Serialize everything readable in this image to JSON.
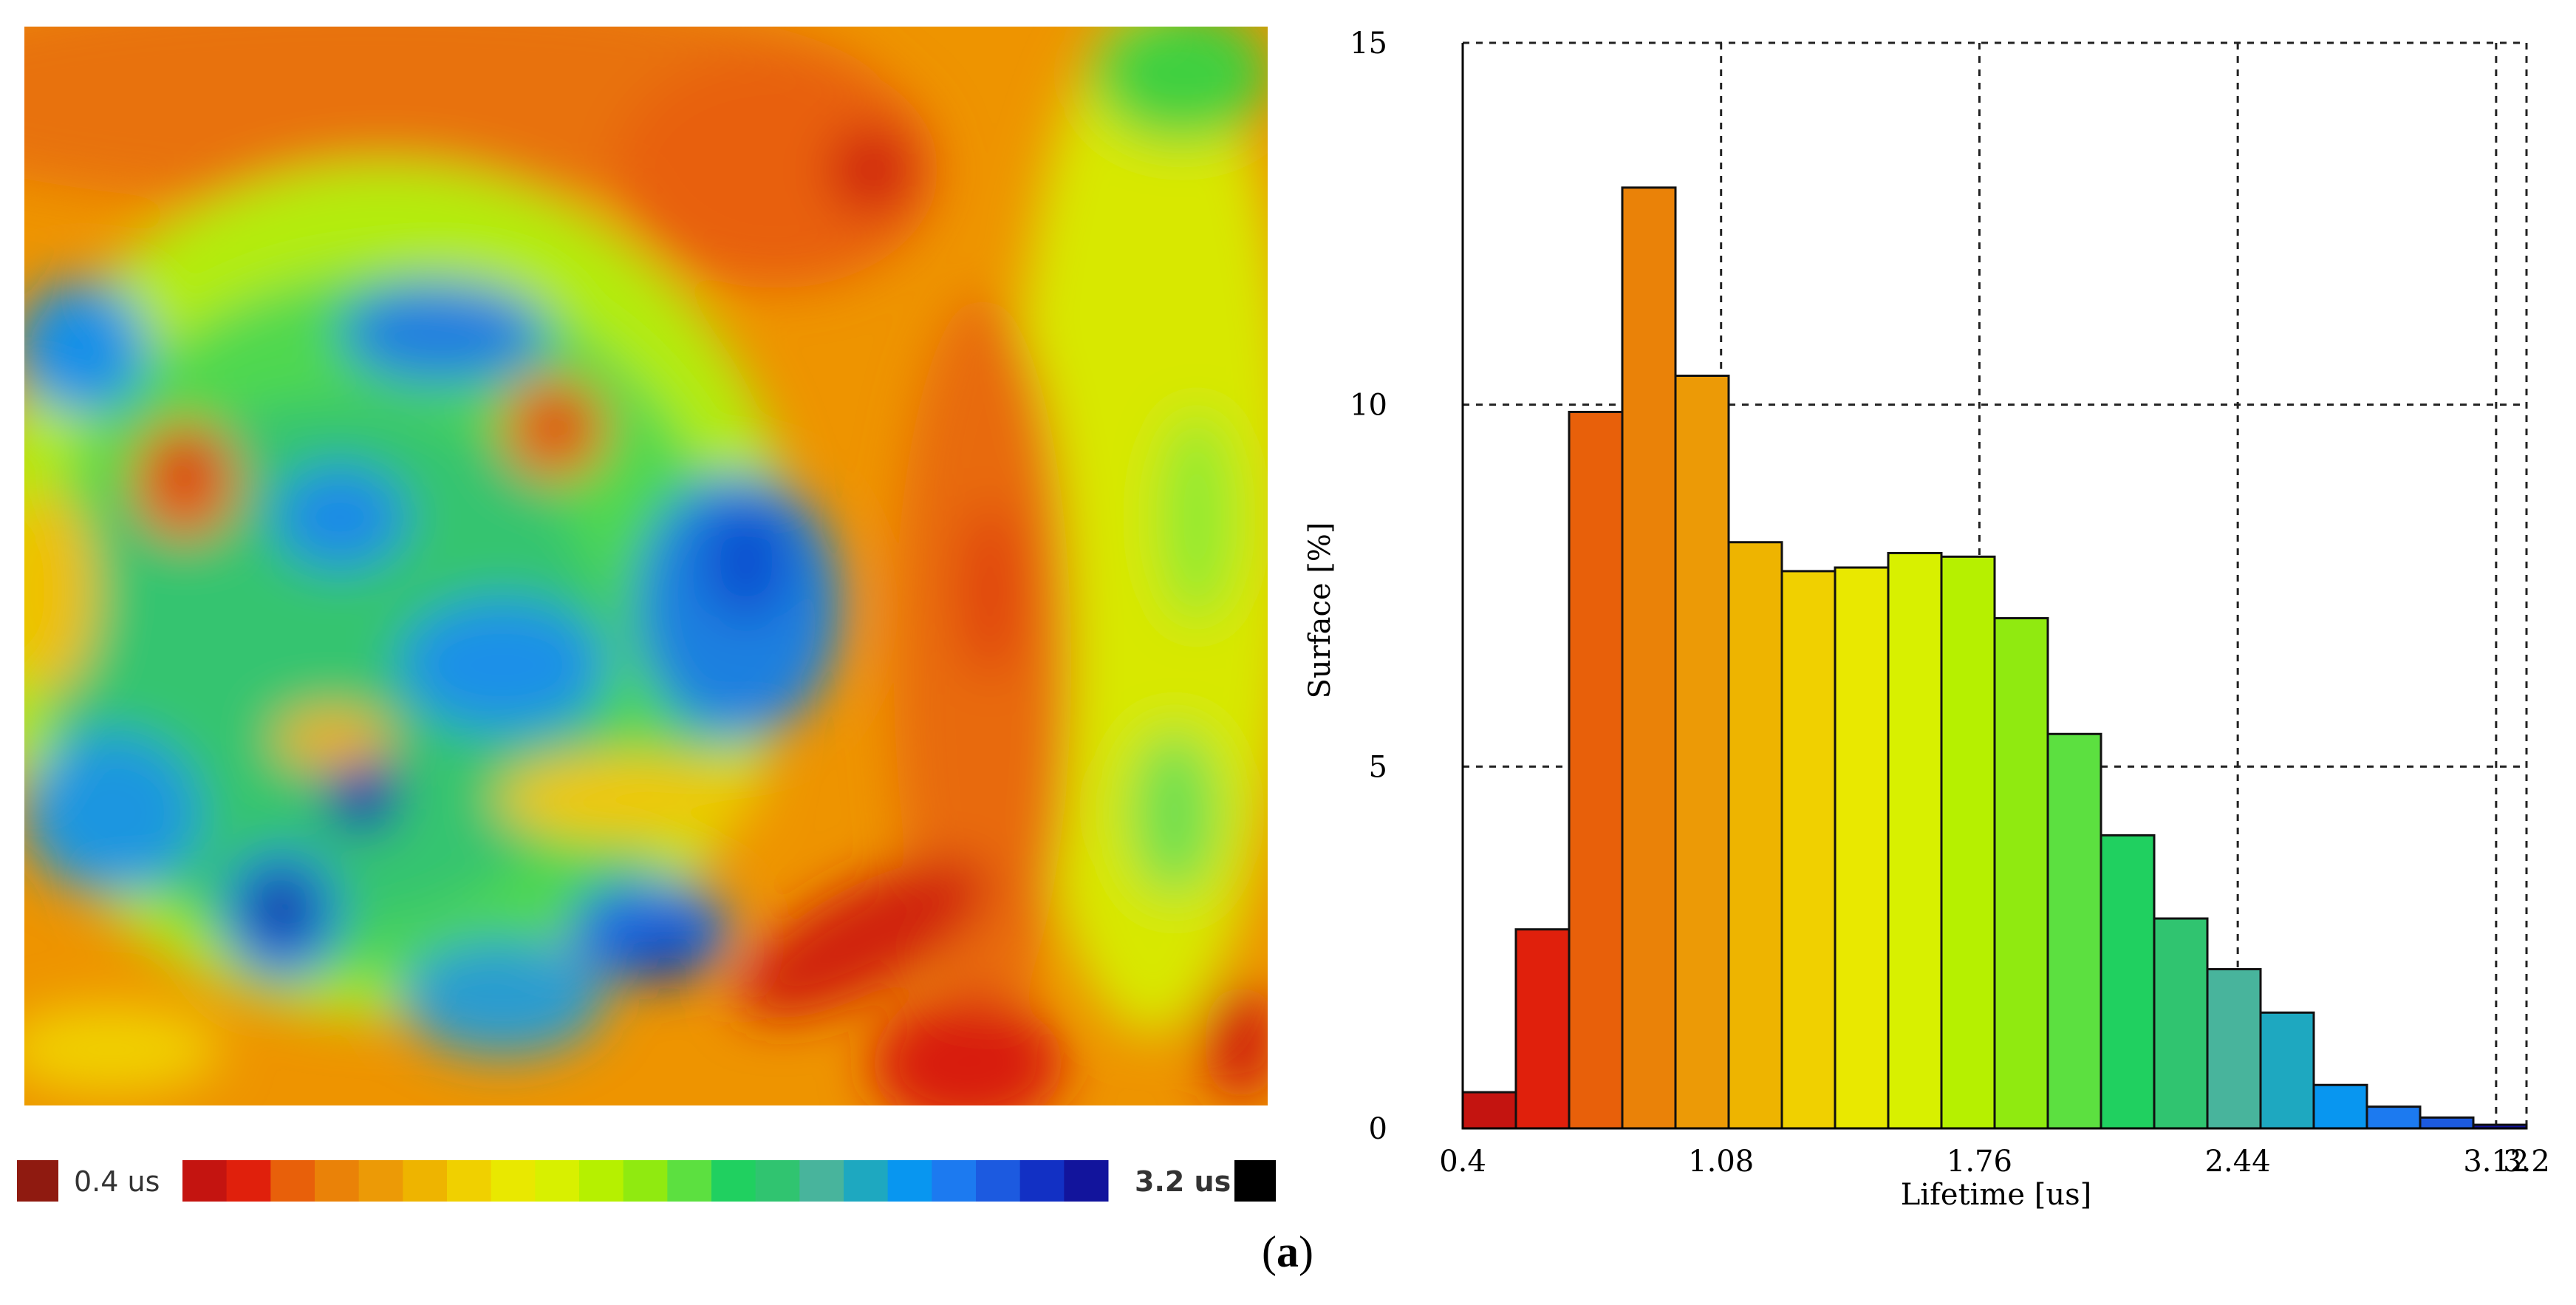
{
  "colors": {
    "min_swatch": "#8f1a10",
    "max_swatch": "#000000",
    "scale": [
      "#c41410",
      "#e0200c",
      "#e8600a",
      "#ea8208",
      "#ec9a06",
      "#eeb400",
      "#f0d000",
      "#e9e800",
      "#d8f000",
      "#b6f000",
      "#90ea10",
      "#5ce040",
      "#20d060",
      "#30c470",
      "#48b49c",
      "#1ea8c0",
      "#0896f0",
      "#1c7af0",
      "#1c5ae0",
      "#1230c4",
      "#12149c"
    ],
    "bar_colors": [
      "#c41410",
      "#e0200c",
      "#e8600a",
      "#ea8208",
      "#ec9a06",
      "#eeb400",
      "#f0d000",
      "#e9e800",
      "#d8f000",
      "#b6f000",
      "#90ea10",
      "#5ce040",
      "#20d060",
      "#30c470",
      "#48b49c",
      "#1ea8c0",
      "#0896f0",
      "#1c7af0",
      "#1c5ae0",
      "#12149c"
    ]
  },
  "legend": {
    "min_label": "0.4 us",
    "max_label": "3.2 us"
  },
  "caption": {
    "open": "(",
    "letter": "a",
    "close": ")"
  },
  "chart_data": {
    "type": "bar",
    "title": "",
    "xlabel": "Lifetime [us]",
    "ylabel": "Surface [%]",
    "xlim": [
      0.4,
      3.2
    ],
    "ylim": [
      0,
      15
    ],
    "x_ticks": [
      "0.4",
      "1.08",
      "1.76",
      "2.44",
      "3.12",
      "3.2"
    ],
    "x_tick_values": [
      0.4,
      1.08,
      1.76,
      2.44,
      3.12,
      3.2
    ],
    "y_ticks": [
      "0",
      "5",
      "10",
      "15"
    ],
    "y_tick_values": [
      0,
      5,
      10,
      15
    ],
    "grid": true,
    "bin_width": 0.14,
    "bin_starts": [
      0.4,
      0.54,
      0.68,
      0.82,
      0.96,
      1.1,
      1.24,
      1.38,
      1.52,
      1.66,
      1.8,
      1.94,
      2.08,
      2.22,
      2.36,
      2.5,
      2.64,
      2.78,
      2.92,
      3.06
    ],
    "values": [
      0.5,
      2.75,
      9.9,
      13.0,
      10.4,
      8.1,
      7.7,
      7.75,
      7.95,
      7.9,
      7.05,
      5.45,
      4.05,
      2.9,
      2.2,
      1.6,
      0.6,
      0.3,
      0.15,
      0.05
    ]
  }
}
